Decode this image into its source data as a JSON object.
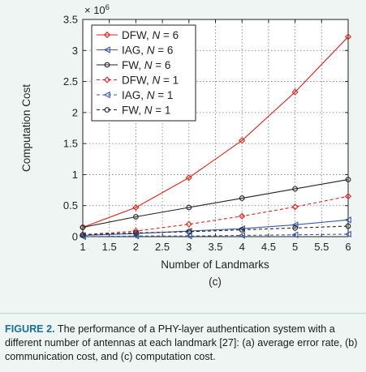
{
  "chart_data": {
    "type": "line",
    "x": [
      1,
      2,
      3,
      4,
      5,
      6
    ],
    "xlabel": "Number of Landmarks",
    "ylabel": "Computation Cost",
    "multiplier": "× 10",
    "multiplier_exp": "6",
    "panel_label": "(c)",
    "xlim": [
      1,
      6
    ],
    "ylim": [
      0,
      3.5
    ],
    "xticks": [
      "1",
      "1.5",
      "2",
      "2.5",
      "3",
      "3.5",
      "4",
      "4.5",
      "5",
      "5.5",
      "6"
    ],
    "yticks": [
      "0",
      "0.5",
      "1",
      "1.5",
      "2",
      "2.5",
      "3",
      "3.5"
    ],
    "grid": true,
    "legend_position": "top-left",
    "series": [
      {
        "name": "DFW, N = 6",
        "legend_parts": [
          "DFW, ",
          "N",
          " = 6"
        ],
        "values": [
          0.15,
          0.47,
          0.95,
          1.55,
          2.33,
          3.22
        ],
        "color": "#e32219",
        "dash": "solid",
        "marker": "diamond"
      },
      {
        "name": "IAG, N = 6",
        "legend_parts": [
          "IAG, ",
          "N",
          " = 6"
        ],
        "values": [
          0.02,
          0.05,
          0.09,
          0.13,
          0.19,
          0.27
        ],
        "color": "#3b5aa8",
        "dash": "solid",
        "marker": "triangle-left"
      },
      {
        "name": "FW, N = 6",
        "legend_parts": [
          "FW, ",
          "N",
          " = 6"
        ],
        "values": [
          0.15,
          0.32,
          0.47,
          0.62,
          0.77,
          0.92
        ],
        "color": "#222222",
        "dash": "solid",
        "marker": "circle"
      },
      {
        "name": "DFW, N = 1",
        "legend_parts": [
          "DFW, ",
          "N",
          " = 1"
        ],
        "values": [
          0.03,
          0.09,
          0.2,
          0.33,
          0.48,
          0.65
        ],
        "color": "#e32219",
        "dash": "dashed",
        "marker": "diamond"
      },
      {
        "name": "IAG, N = 1",
        "legend_parts": [
          "IAG, ",
          "N",
          " = 1"
        ],
        "values": [
          0.0,
          0.01,
          0.01,
          0.02,
          0.03,
          0.04
        ],
        "color": "#3b5aa8",
        "dash": "dashed",
        "marker": "triangle-left"
      },
      {
        "name": "FW, N = 1",
        "legend_parts": [
          "FW, ",
          "N",
          " = 1"
        ],
        "values": [
          0.03,
          0.06,
          0.08,
          0.11,
          0.14,
          0.17
        ],
        "color": "#222222",
        "dash": "dashed",
        "marker": "circle"
      }
    ]
  },
  "caption": {
    "label": "FIGURE 2.",
    "text": "The performance of a PHY-layer authentication system with a different number of antennas at each landmark [27]: (a) average error rate, (b) communication cost, and (c) computation cost."
  }
}
